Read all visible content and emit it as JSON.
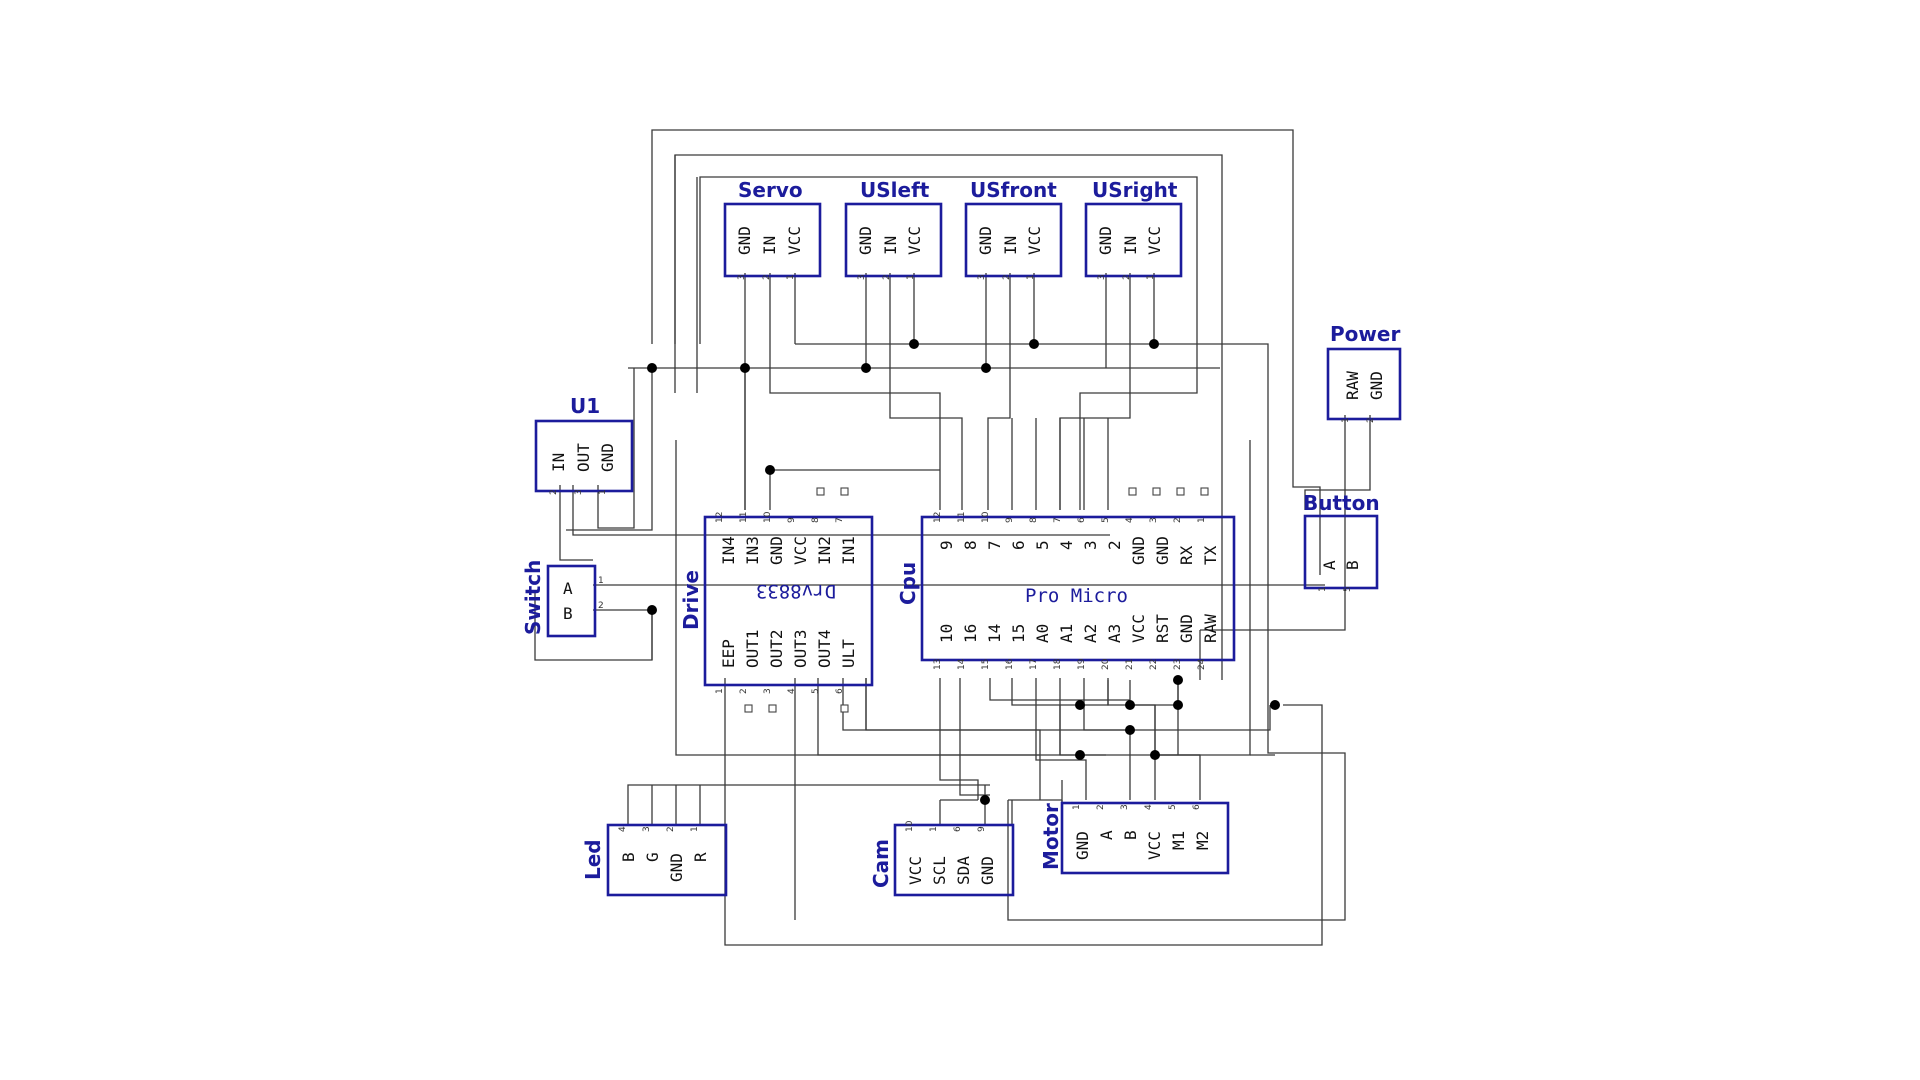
{
  "components": {
    "servo": {
      "title": "Servo",
      "pins": [
        "GND",
        "IN",
        "VCC"
      ],
      "nums": [
        "3",
        "2",
        "1"
      ]
    },
    "usleft": {
      "title": "USleft",
      "pins": [
        "GND",
        "IN",
        "VCC"
      ],
      "nums": [
        "3",
        "2",
        "1"
      ]
    },
    "usfront": {
      "title": "USfront",
      "pins": [
        "GND",
        "IN",
        "VCC"
      ],
      "nums": [
        "3",
        "2",
        "1"
      ]
    },
    "usright": {
      "title": "USright",
      "pins": [
        "GND",
        "IN",
        "VCC"
      ],
      "nums": [
        "3",
        "2",
        "1"
      ]
    },
    "power": {
      "title": "Power",
      "pins": [
        "RAW",
        "GND"
      ],
      "nums": [
        "1",
        "2"
      ]
    },
    "u1": {
      "title": "U1",
      "pins": [
        "IN",
        "OUT",
        "GND"
      ],
      "nums": [
        "2",
        "3",
        "1"
      ]
    },
    "button": {
      "title": "Button",
      "pins": [
        "A",
        "B"
      ],
      "nums": [
        "1",
        "5"
      ]
    },
    "switch": {
      "title": "Switch",
      "pins": [
        "A",
        "B"
      ],
      "nums": [
        "1",
        "2"
      ]
    },
    "drive": {
      "title": "Drive",
      "chip_label": "Drv8833",
      "top_pins": [
        "IN4",
        "IN3",
        "GND",
        "VCC",
        "IN2",
        "IN1"
      ],
      "top_nums": [
        "12",
        "11",
        "10",
        "9",
        "8",
        "7"
      ],
      "bottom_pins": [
        "EEP",
        "OUT1",
        "OUT2",
        "OUT3",
        "OUT4",
        "ULT"
      ],
      "bottom_nums": [
        "1",
        "2",
        "3",
        "4",
        "5",
        "6"
      ]
    },
    "cpu": {
      "title": "Cpu",
      "chip_label": "Pro Micro",
      "top_pins": [
        "9",
        "8",
        "7",
        "6",
        "5",
        "4",
        "3",
        "2",
        "GND",
        "GND",
        "RX",
        "TX"
      ],
      "top_nums": [
        "12",
        "11",
        "10",
        "9",
        "8",
        "7",
        "6",
        "5",
        "4",
        "3",
        "2",
        "1"
      ],
      "bottom_pins": [
        "10",
        "16",
        "14",
        "15",
        "A0",
        "A1",
        "A2",
        "A3",
        "VCC",
        "RST",
        "GND",
        "RAW"
      ],
      "bottom_nums": [
        "13",
        "14",
        "15",
        "16",
        "17",
        "18",
        "19",
        "20",
        "21",
        "22",
        "23",
        "24"
      ]
    },
    "led": {
      "title": "Led",
      "pins": [
        "B",
        "G",
        "GND",
        "R"
      ],
      "nums": [
        "4",
        "3",
        "2",
        "1"
      ]
    },
    "cam": {
      "title": "Cam",
      "pins": [
        "VCC",
        "SCL",
        "SDA",
        "GND"
      ],
      "nums": [
        "10",
        "1",
        "6",
        "9"
      ]
    },
    "motor": {
      "title": "Motor",
      "pins": [
        "GND",
        "A",
        "B",
        "VCC",
        "M1",
        "M2"
      ],
      "nums": [
        "1",
        "2",
        "3",
        "4",
        "5",
        "6"
      ]
    }
  }
}
